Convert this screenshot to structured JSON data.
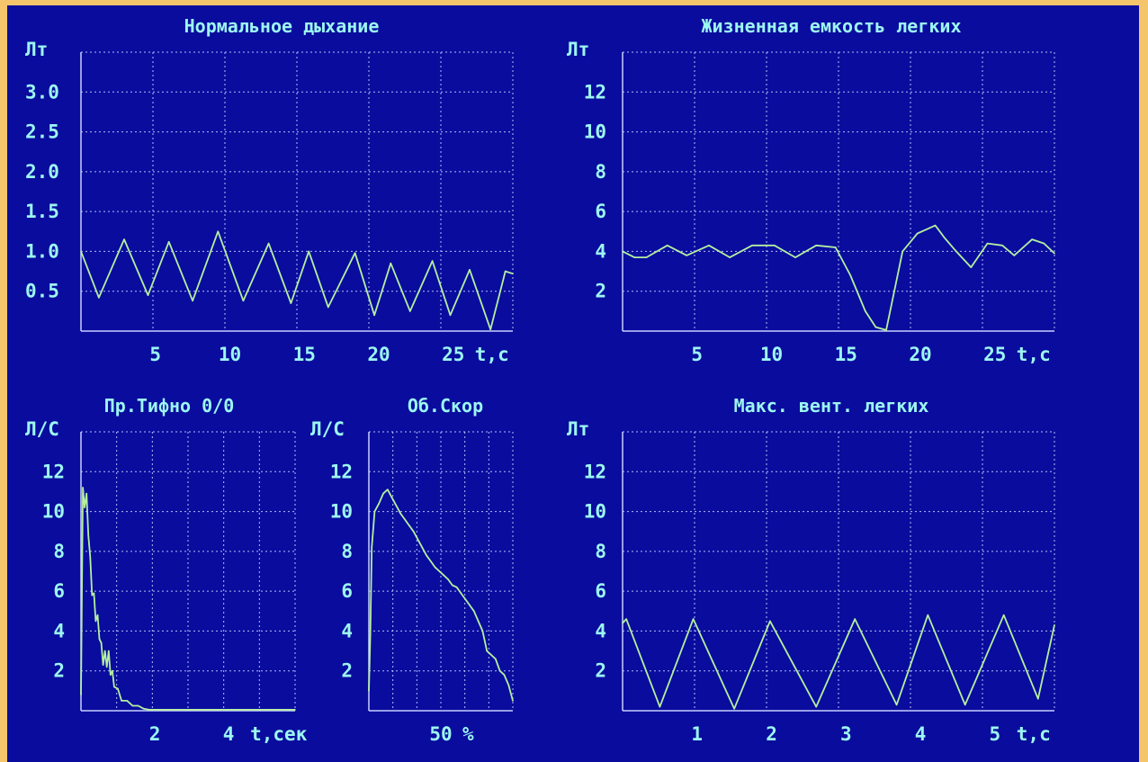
{
  "chart_data": [
    {
      "id": "normal",
      "type": "line",
      "title": "Нормальное дыхание",
      "ylabel": "Лт",
      "xlabel": "t,c",
      "xlim": [
        0,
        29
      ],
      "ylim": [
        0,
        3.5
      ],
      "xticks": [
        5,
        10,
        15,
        20,
        25
      ],
      "xtick_labels": [
        "5",
        "10",
        "15",
        "20",
        "25"
      ],
      "yticks": [
        0.5,
        1.0,
        1.5,
        2.0,
        2.5,
        3.0
      ],
      "ytick_labels": [
        "0.5",
        "1.0",
        "1.5",
        "2.0",
        "2.5",
        "3.0"
      ],
      "grid": true,
      "series": [
        {
          "x": [
            0,
            1.2,
            2.9,
            4.5,
            5.9,
            7.5,
            9.2,
            10.9,
            12.6,
            14.1,
            15.3,
            16.6,
            18.4,
            19.7,
            20.8,
            22.1,
            23.6,
            24.8,
            26.1,
            27.5,
            28.5,
            29
          ],
          "y": [
            1.0,
            0.42,
            1.15,
            0.45,
            1.12,
            0.38,
            1.25,
            0.38,
            1.1,
            0.35,
            1.0,
            0.3,
            0.98,
            0.2,
            0.85,
            0.25,
            0.88,
            0.2,
            0.77,
            0.02,
            0.75,
            0.72
          ]
        }
      ]
    },
    {
      "id": "vc",
      "type": "line",
      "title": "Жизненная емкость легких",
      "ylabel": "Лт",
      "xlabel": "t,c",
      "xlim": [
        0,
        29
      ],
      "ylim": [
        0,
        14
      ],
      "xticks": [
        5,
        10,
        15,
        20,
        25
      ],
      "xtick_labels": [
        "5",
        "10",
        "15",
        "20",
        "25"
      ],
      "yticks": [
        2,
        4,
        6,
        8,
        10,
        12
      ],
      "ytick_labels": [
        "2",
        "4",
        "6",
        "8",
        "10",
        "12"
      ],
      "grid": true,
      "series": [
        {
          "x": [
            0,
            0.8,
            1.6,
            3,
            4.3,
            5.8,
            7.2,
            8.7,
            10.2,
            11.6,
            13,
            14.3,
            15.3,
            16.3,
            17,
            17.7,
            18.8,
            19.8,
            21,
            21.6,
            22.4,
            23.4,
            24.5,
            25.5,
            26.3,
            27.5,
            28.3,
            29
          ],
          "y": [
            4.0,
            3.7,
            3.7,
            4.3,
            3.8,
            4.3,
            3.7,
            4.3,
            4.3,
            3.7,
            4.3,
            4.2,
            2.8,
            1.0,
            0.2,
            0.05,
            4.0,
            4.9,
            5.3,
            4.7,
            4.0,
            3.2,
            4.4,
            4.3,
            3.8,
            4.6,
            4.4,
            3.9
          ]
        }
      ]
    },
    {
      "id": "tiffeneau",
      "type": "line",
      "title": "Пр.Тифно 0/0",
      "ylabel": "Л/С",
      "xlabel": "t,сек",
      "xlim": [
        0,
        5.8
      ],
      "ylim": [
        0,
        14
      ],
      "xticks": [
        2,
        4
      ],
      "xtick_labels": [
        "2",
        "4"
      ],
      "yticks": [
        2,
        4,
        6,
        8,
        10,
        12
      ],
      "ytick_labels": [
        "2",
        "4",
        "6",
        "8",
        "10",
        "12"
      ],
      "grid": true,
      "series": [
        {
          "x": [
            0,
            0.05,
            0.1,
            0.15,
            0.2,
            0.25,
            0.3,
            0.35,
            0.4,
            0.45,
            0.5,
            0.55,
            0.6,
            0.65,
            0.7,
            0.75,
            0.8,
            0.85,
            0.9,
            1.0,
            1.1,
            1.25,
            1.4,
            1.55,
            1.7,
            1.85,
            2.0,
            2.5,
            3.0,
            4.0,
            5.0,
            5.8
          ],
          "y": [
            0.8,
            11.2,
            10.2,
            10.9,
            8.8,
            7.7,
            5.8,
            5.9,
            4.5,
            4.8,
            3.6,
            3.4,
            2.3,
            3.0,
            2.2,
            3.0,
            1.8,
            2.0,
            1.2,
            1.1,
            0.5,
            0.5,
            0.25,
            0.25,
            0.1,
            0.05,
            0.05,
            0.05,
            0.05,
            0.05,
            0.05,
            0.05
          ]
        }
      ]
    },
    {
      "id": "flow",
      "type": "line",
      "title": "Об.Скор",
      "ylabel": "Л/С",
      "xlabel": "%",
      "xlim": [
        0,
        100
      ],
      "ylim": [
        0,
        14
      ],
      "xticks": [
        50
      ],
      "xtick_labels": [
        "50"
      ],
      "yticks": [
        2,
        4,
        6,
        8,
        10,
        12
      ],
      "ytick_labels": [
        "2",
        "4",
        "6",
        "8",
        "10",
        "12"
      ],
      "grid": true,
      "series": [
        {
          "x": [
            0,
            1,
            2,
            4,
            7,
            10,
            13,
            16,
            19,
            22,
            25,
            28,
            31,
            34,
            37,
            40,
            43,
            46,
            49,
            52,
            55,
            58,
            61,
            64,
            67,
            70,
            73,
            76,
            79,
            82,
            85,
            88,
            91,
            94,
            97,
            100
          ],
          "y": [
            1.0,
            3.8,
            8.2,
            10.0,
            10.4,
            10.9,
            11.1,
            10.7,
            10.3,
            9.9,
            9.6,
            9.3,
            9.0,
            8.6,
            8.2,
            7.8,
            7.5,
            7.2,
            7.0,
            6.8,
            6.6,
            6.3,
            6.2,
            5.9,
            5.6,
            5.3,
            5.0,
            4.5,
            4.0,
            3.0,
            2.8,
            2.6,
            2.0,
            1.8,
            1.3,
            0.5
          ]
        }
      ]
    },
    {
      "id": "mvv",
      "type": "line",
      "title": "Макс. вент. легких",
      "ylabel": "Лт",
      "xlabel": "t,c",
      "xlim": [
        0,
        5.8
      ],
      "ylim": [
        0,
        14
      ],
      "xticks": [
        1,
        2,
        3,
        4,
        5
      ],
      "xtick_labels": [
        "1",
        "2",
        "3",
        "4",
        "5"
      ],
      "yticks": [
        2,
        4,
        6,
        8,
        10,
        12
      ],
      "ytick_labels": [
        "2",
        "4",
        "6",
        "8",
        "10",
        "12"
      ],
      "grid": true,
      "series": [
        {
          "x": [
            0,
            0.05,
            0.5,
            0.95,
            1.5,
            1.98,
            2.6,
            3.12,
            3.68,
            4.1,
            4.6,
            5.12,
            5.58,
            5.8
          ],
          "y": [
            4.4,
            4.6,
            0.2,
            4.6,
            0.1,
            4.5,
            0.2,
            4.6,
            0.3,
            4.8,
            0.3,
            4.8,
            0.6,
            4.3
          ]
        }
      ]
    }
  ]
}
